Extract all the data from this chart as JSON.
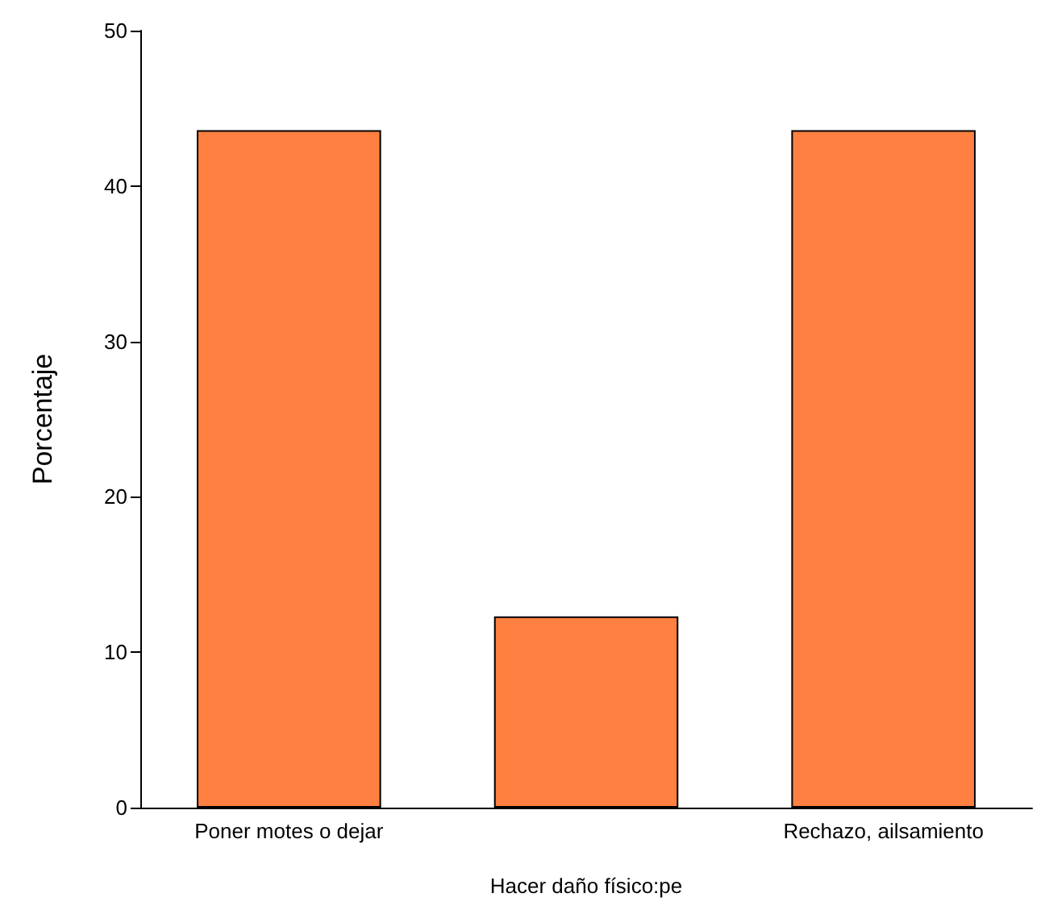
{
  "chart_data": {
    "type": "bar",
    "xlabel": "Hacer daño físico:pe",
    "ylabel": "Porcentaje",
    "categories": [
      "Poner motes o dejar",
      null,
      "Rechazo, ailsamiento"
    ],
    "values": [
      43.6,
      12.3,
      43.6
    ],
    "color": "#ff8040",
    "ylim": [
      0,
      50
    ],
    "yticks": [
      0,
      10,
      20,
      30,
      40,
      50
    ],
    "grid": false
  }
}
